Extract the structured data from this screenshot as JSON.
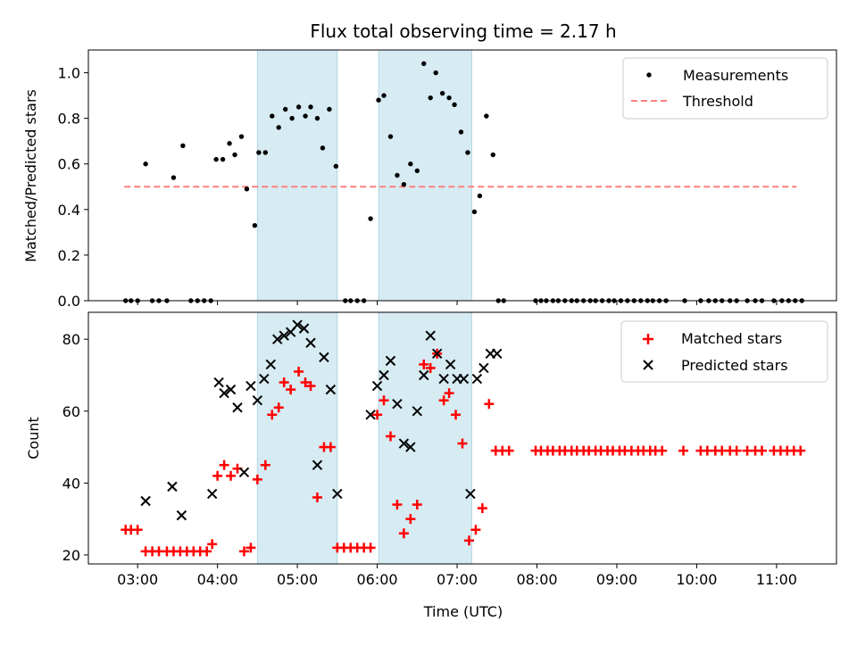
{
  "title": "Flux total observing time = 2.17 h",
  "chart_data": [
    {
      "type": "scatter",
      "panel": "top",
      "ylabel": "Matched/Predicted stars",
      "ylim": [
        0,
        1.1
      ],
      "yticks": [
        "0.0",
        "0.2",
        "0.4",
        "0.6",
        "0.8",
        "1.0"
      ],
      "ytick_values": [
        0,
        0.2,
        0.4,
        0.6,
        0.8,
        1.0
      ],
      "threshold": {
        "name": "Threshold",
        "value": 0.5,
        "x_start": "02:50",
        "x_end": "11:15",
        "color": "#ff7f7f"
      },
      "shaded_intervals": [
        [
          "04:30",
          "05:30"
        ],
        [
          "06:01",
          "07:11"
        ]
      ],
      "legend": {
        "position": "top-right",
        "entries": [
          "Measurements",
          "Threshold"
        ]
      },
      "series": [
        {
          "name": "Measurements",
          "color": "#000000",
          "points": [
            [
              "02:51",
              0
            ],
            [
              "02:55",
              0
            ],
            [
              "03:00",
              0
            ],
            [
              "03:06",
              0.6
            ],
            [
              "03:11",
              0
            ],
            [
              "03:16",
              0
            ],
            [
              "03:22",
              0
            ],
            [
              "03:27",
              0.54
            ],
            [
              "03:34",
              0.68
            ],
            [
              "03:40",
              0
            ],
            [
              "03:45",
              0
            ],
            [
              "03:50",
              0
            ],
            [
              "03:55",
              0
            ],
            [
              "03:59",
              0.62
            ],
            [
              "04:04",
              0.62
            ],
            [
              "04:09",
              0.69
            ],
            [
              "04:13",
              0.64
            ],
            [
              "04:18",
              0.72
            ],
            [
              "04:22",
              0.49
            ],
            [
              "04:28",
              0.33
            ],
            [
              "04:31",
              0.65
            ],
            [
              "04:36",
              0.65
            ],
            [
              "04:41",
              0.81
            ],
            [
              "04:46",
              0.76
            ],
            [
              "04:51",
              0.84
            ],
            [
              "04:56",
              0.8
            ],
            [
              "05:01",
              0.85
            ],
            [
              "05:06",
              0.81
            ],
            [
              "05:10",
              0.85
            ],
            [
              "05:15",
              0.8
            ],
            [
              "05:19",
              0.67
            ],
            [
              "05:24",
              0.84
            ],
            [
              "05:29",
              0.59
            ],
            [
              "05:36",
              0
            ],
            [
              "05:40",
              0
            ],
            [
              "05:45",
              0
            ],
            [
              "05:50",
              0
            ],
            [
              "05:55",
              0.36
            ],
            [
              "06:01",
              0.88
            ],
            [
              "06:05",
              0.9
            ],
            [
              "06:10",
              0.72
            ],
            [
              "06:15",
              0.55
            ],
            [
              "06:20",
              0.51
            ],
            [
              "06:25",
              0.6
            ],
            [
              "06:30",
              0.57
            ],
            [
              "06:35",
              1.04
            ],
            [
              "06:40",
              0.89
            ],
            [
              "06:44",
              1.0
            ],
            [
              "06:49",
              0.91
            ],
            [
              "06:54",
              0.89
            ],
            [
              "06:58",
              0.86
            ],
            [
              "07:03",
              0.74
            ],
            [
              "07:08",
              0.65
            ],
            [
              "07:13",
              0.39
            ],
            [
              "07:17",
              0.46
            ],
            [
              "07:22",
              0.81
            ],
            [
              "07:27",
              0.64
            ],
            [
              "07:31",
              0
            ],
            [
              "07:35",
              0
            ],
            [
              "07:59",
              0
            ],
            [
              "08:03",
              0
            ],
            [
              "08:07",
              0
            ],
            [
              "08:12",
              0
            ],
            [
              "08:16",
              0
            ],
            [
              "08:21",
              0
            ],
            [
              "08:26",
              0
            ],
            [
              "08:30",
              0
            ],
            [
              "08:35",
              0
            ],
            [
              "08:40",
              0
            ],
            [
              "08:44",
              0
            ],
            [
              "08:49",
              0
            ],
            [
              "08:54",
              0
            ],
            [
              "08:58",
              0
            ],
            [
              "09:03",
              0
            ],
            [
              "09:08",
              0
            ],
            [
              "09:13",
              0
            ],
            [
              "09:18",
              0
            ],
            [
              "09:23",
              0
            ],
            [
              "09:27",
              0
            ],
            [
              "09:32",
              0
            ],
            [
              "09:37",
              0
            ],
            [
              "09:51",
              0
            ],
            [
              "10:03",
              0
            ],
            [
              "10:09",
              0
            ],
            [
              "10:14",
              0
            ],
            [
              "10:19",
              0
            ],
            [
              "10:25",
              0
            ],
            [
              "10:30",
              0
            ],
            [
              "10:38",
              0
            ],
            [
              "10:44",
              0
            ],
            [
              "10:49",
              0
            ],
            [
              "10:58",
              0
            ],
            [
              "11:04",
              0
            ],
            [
              "11:09",
              0
            ],
            [
              "11:14",
              0
            ],
            [
              "11:19",
              0
            ]
          ]
        }
      ]
    },
    {
      "type": "scatter",
      "panel": "bottom",
      "xlabel": "Time (UTC)",
      "ylabel": "Count",
      "xlim": [
        "02:23",
        "11:45"
      ],
      "ylim": [
        17.5,
        87.5
      ],
      "yticks": [
        "20",
        "40",
        "60",
        "80"
      ],
      "ytick_values": [
        20,
        40,
        60,
        80
      ],
      "xticks": [
        "03:00",
        "04:00",
        "05:00",
        "06:00",
        "07:00",
        "08:00",
        "09:00",
        "10:00",
        "11:00"
      ],
      "shaded_intervals": [
        [
          "04:30",
          "05:30"
        ],
        [
          "06:01",
          "07:11"
        ]
      ],
      "legend": {
        "position": "top-right",
        "entries": [
          "Matched stars",
          "Predicted stars"
        ]
      },
      "series": [
        {
          "name": "Matched stars",
          "marker": "plus",
          "color": "#ff0000",
          "points": [
            [
              "02:51",
              27
            ],
            [
              "02:55",
              27
            ],
            [
              "03:00",
              27
            ],
            [
              "03:06",
              21
            ],
            [
              "03:11",
              21
            ],
            [
              "03:16",
              21
            ],
            [
              "03:22",
              21
            ],
            [
              "03:27",
              21
            ],
            [
              "03:32",
              21
            ],
            [
              "03:37",
              21
            ],
            [
              "03:42",
              21
            ],
            [
              "03:47",
              21
            ],
            [
              "03:52",
              21
            ],
            [
              "03:56",
              23
            ],
            [
              "04:00",
              42
            ],
            [
              "04:05",
              45
            ],
            [
              "04:10",
              42
            ],
            [
              "04:15",
              44
            ],
            [
              "04:20",
              21
            ],
            [
              "04:25",
              22
            ],
            [
              "04:30",
              41
            ],
            [
              "04:36",
              45
            ],
            [
              "04:41",
              59
            ],
            [
              "04:46",
              61
            ],
            [
              "04:50",
              68
            ],
            [
              "04:55",
              66
            ],
            [
              "05:01",
              71
            ],
            [
              "05:06",
              68
            ],
            [
              "05:10",
              67
            ],
            [
              "05:15",
              36
            ],
            [
              "05:20",
              50
            ],
            [
              "05:25",
              50
            ],
            [
              "05:30",
              22
            ],
            [
              "05:35",
              22
            ],
            [
              "05:40",
              22
            ],
            [
              "05:45",
              22
            ],
            [
              "05:50",
              22
            ],
            [
              "05:55",
              22
            ],
            [
              "06:00",
              59
            ],
            [
              "06:05",
              63
            ],
            [
              "06:10",
              53
            ],
            [
              "06:15",
              34
            ],
            [
              "06:20",
              26
            ],
            [
              "06:25",
              30
            ],
            [
              "06:30",
              34
            ],
            [
              "06:35",
              73
            ],
            [
              "06:40",
              72
            ],
            [
              "06:45",
              76
            ],
            [
              "06:50",
              63
            ],
            [
              "06:54",
              65
            ],
            [
              "06:59",
              59
            ],
            [
              "07:04",
              51
            ],
            [
              "07:09",
              24
            ],
            [
              "07:14",
              27
            ],
            [
              "07:19",
              33
            ],
            [
              "07:24",
              62
            ],
            [
              "07:29",
              49
            ],
            [
              "07:34",
              49
            ],
            [
              "07:39",
              49
            ],
            [
              "07:59",
              49
            ],
            [
              "08:03",
              49
            ],
            [
              "08:08",
              49
            ],
            [
              "08:12",
              49
            ],
            [
              "08:17",
              49
            ],
            [
              "08:21",
              49
            ],
            [
              "08:26",
              49
            ],
            [
              "08:30",
              49
            ],
            [
              "08:35",
              49
            ],
            [
              "08:39",
              49
            ],
            [
              "08:44",
              49
            ],
            [
              "08:48",
              49
            ],
            [
              "08:53",
              49
            ],
            [
              "08:57",
              49
            ],
            [
              "09:02",
              49
            ],
            [
              "09:06",
              49
            ],
            [
              "09:11",
              49
            ],
            [
              "09:16",
              49
            ],
            [
              "09:20",
              49
            ],
            [
              "09:25",
              49
            ],
            [
              "09:29",
              49
            ],
            [
              "09:34",
              49
            ],
            [
              "09:50",
              49
            ],
            [
              "10:03",
              49
            ],
            [
              "10:08",
              49
            ],
            [
              "10:14",
              49
            ],
            [
              "10:19",
              49
            ],
            [
              "10:25",
              49
            ],
            [
              "10:30",
              49
            ],
            [
              "10:38",
              49
            ],
            [
              "10:44",
              49
            ],
            [
              "10:49",
              49
            ],
            [
              "10:58",
              49
            ],
            [
              "11:03",
              49
            ],
            [
              "11:08",
              49
            ],
            [
              "11:13",
              49
            ],
            [
              "11:18",
              49
            ]
          ]
        },
        {
          "name": "Predicted stars",
          "marker": "x",
          "color": "#000000",
          "points": [
            [
              "03:06",
              35
            ],
            [
              "03:26",
              39
            ],
            [
              "03:33",
              31
            ],
            [
              "03:56",
              37
            ],
            [
              "04:01",
              68
            ],
            [
              "04:05",
              65
            ],
            [
              "04:10",
              66
            ],
            [
              "04:15",
              61
            ],
            [
              "04:20",
              43
            ],
            [
              "04:25",
              67
            ],
            [
              "04:30",
              63
            ],
            [
              "04:35",
              69
            ],
            [
              "04:40",
              73
            ],
            [
              "04:45",
              80
            ],
            [
              "04:50",
              81
            ],
            [
              "04:55",
              82
            ],
            [
              "05:00",
              84
            ],
            [
              "05:05",
              83
            ],
            [
              "05:10",
              79
            ],
            [
              "05:15",
              45
            ],
            [
              "05:20",
              75
            ],
            [
              "05:25",
              66
            ],
            [
              "05:30",
              37
            ],
            [
              "05:55",
              59
            ],
            [
              "06:00",
              67
            ],
            [
              "06:05",
              70
            ],
            [
              "06:10",
              74
            ],
            [
              "06:15",
              62
            ],
            [
              "06:20",
              51
            ],
            [
              "06:25",
              50
            ],
            [
              "06:30",
              60
            ],
            [
              "06:35",
              70
            ],
            [
              "06:40",
              81
            ],
            [
              "06:45",
              76
            ],
            [
              "06:50",
              69
            ],
            [
              "06:55",
              73
            ],
            [
              "07:00",
              69
            ],
            [
              "07:05",
              69
            ],
            [
              "07:10",
              37
            ],
            [
              "07:15",
              69
            ],
            [
              "07:20",
              72
            ],
            [
              "07:25",
              76
            ],
            [
              "07:30",
              76
            ]
          ]
        }
      ]
    }
  ]
}
